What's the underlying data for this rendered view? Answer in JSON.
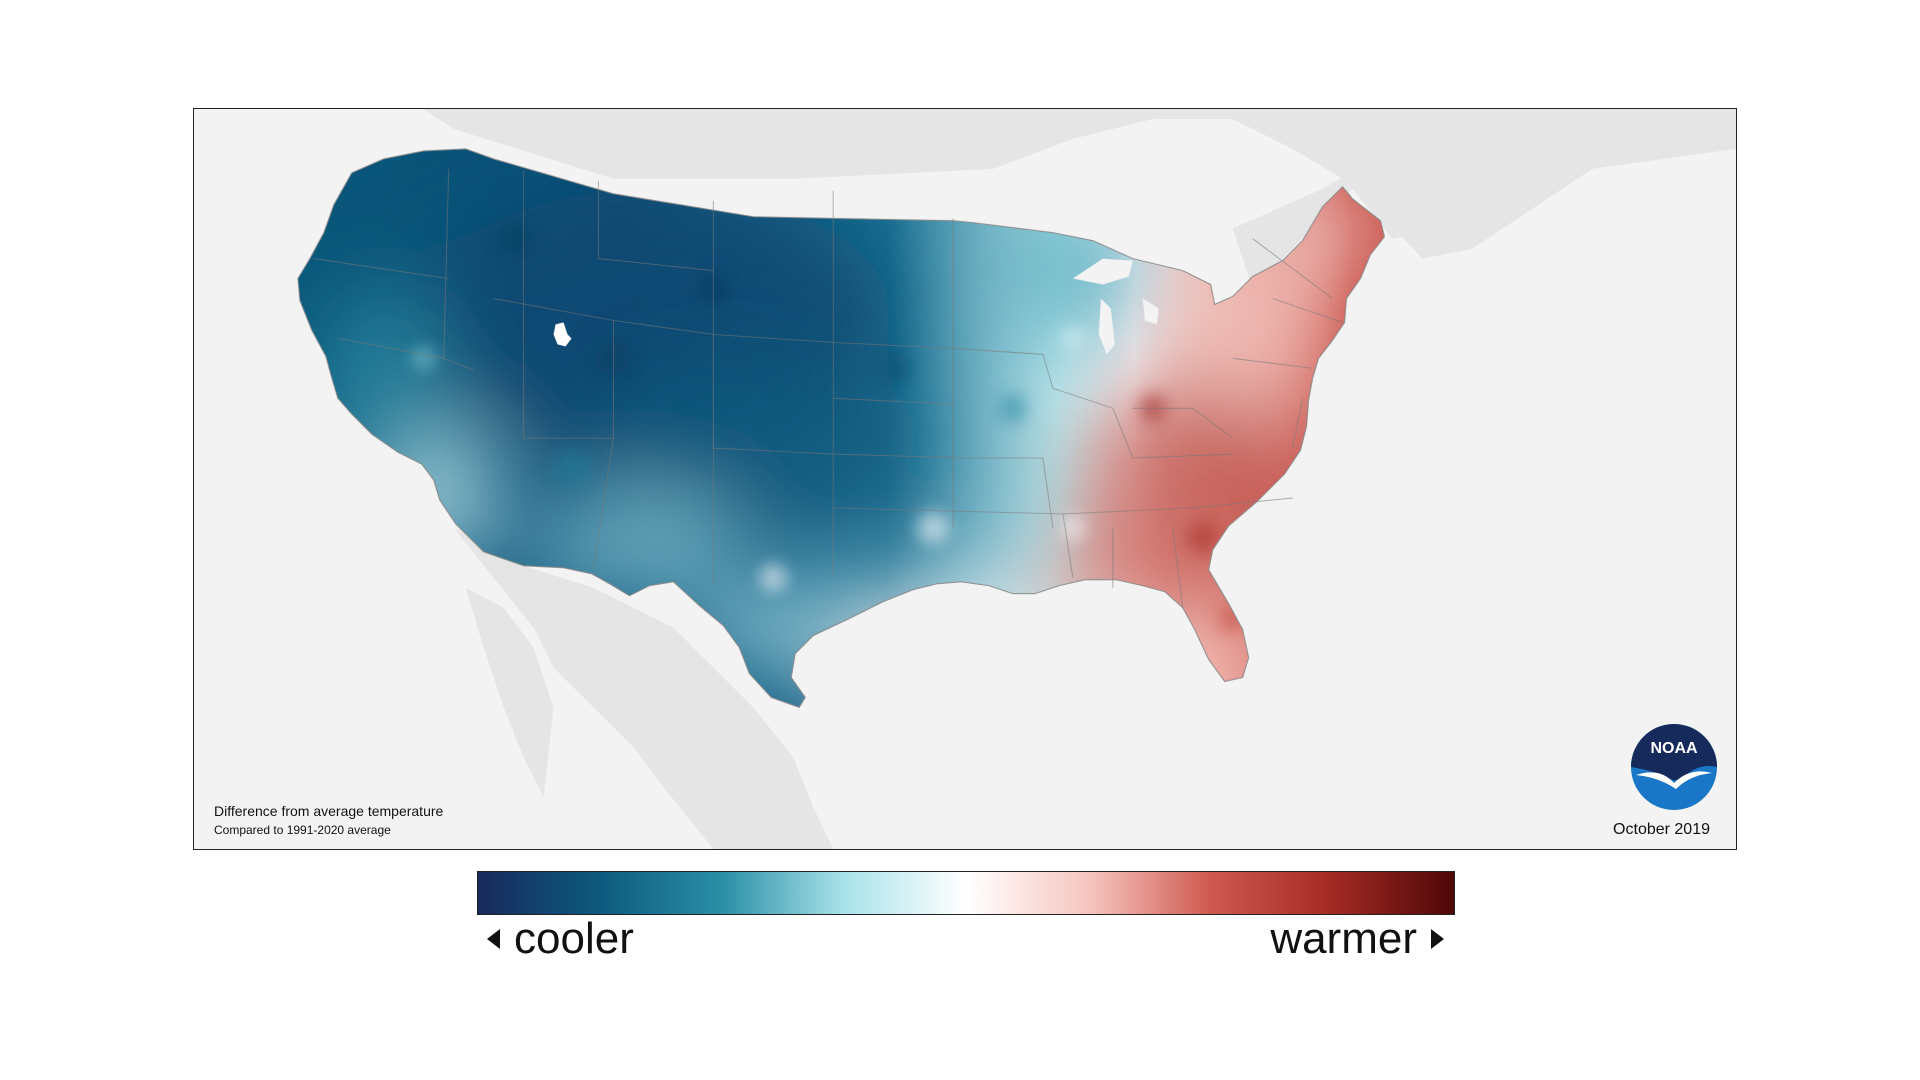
{
  "map": {
    "caption_title": "Difference from average temperature",
    "caption_subtitle": "Compared to 1991-2020 average",
    "date": "October 2019",
    "logo_text": "NOAA"
  },
  "legend": {
    "left_label": "cooler",
    "right_label": "warmer",
    "gradient_colors": [
      "#172a5c",
      "#0d5a7e",
      "#2a8fa6",
      "#a9e2ea",
      "#ffffff",
      "#f6c6c0",
      "#cf5a50",
      "#a42a24",
      "#4e0707"
    ]
  },
  "colors": {
    "land_background": "#e6e6e6",
    "ocean_background": "#f3f3f3",
    "cool_anomaly": "#0f5b7f",
    "neutral": "#ffffff",
    "warm_anomaly": "#c1453d",
    "logo_blue": "#1a76c7",
    "logo_navy": "#172a5c"
  }
}
